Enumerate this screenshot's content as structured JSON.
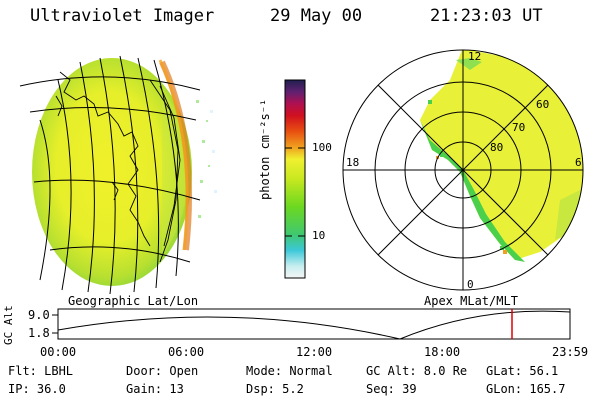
{
  "header": {
    "instrument": "Ultraviolet Imager",
    "date": "29 May 00",
    "time": "21:23:03 UT"
  },
  "colorbar": {
    "unit_label": "photon cm⁻²s⁻¹",
    "ticks": [
      "100",
      "10"
    ],
    "scale": "log"
  },
  "geo_panel": {
    "caption": "Geographic Lat/Lon"
  },
  "polar_panel": {
    "caption": "Apex MLat/MLT",
    "mlt_labels": [
      "12",
      "18",
      "6",
      "0"
    ],
    "mlat_labels": [
      "60",
      "70",
      "80"
    ]
  },
  "timeline": {
    "y_label": "GC Alt",
    "y_ticks": [
      "9.0",
      "1.8"
    ],
    "x_ticks": [
      "00:00",
      "06:00",
      "12:00",
      "18:00",
      "23:59"
    ],
    "current_marker_color": "#e00000"
  },
  "status": {
    "filter": "Flt: LBHL",
    "door": "Door: Open",
    "mode": "Mode: Normal",
    "gc_alt": "GC Alt: 8.0 Re",
    "glat": "GLat: 56.1",
    "ip": "IP: 36.0",
    "gain": "Gain: 13",
    "dsp": "Dsp:   5.2",
    "seq": "Seq: 39",
    "glon": "GLon: 165.7"
  }
}
